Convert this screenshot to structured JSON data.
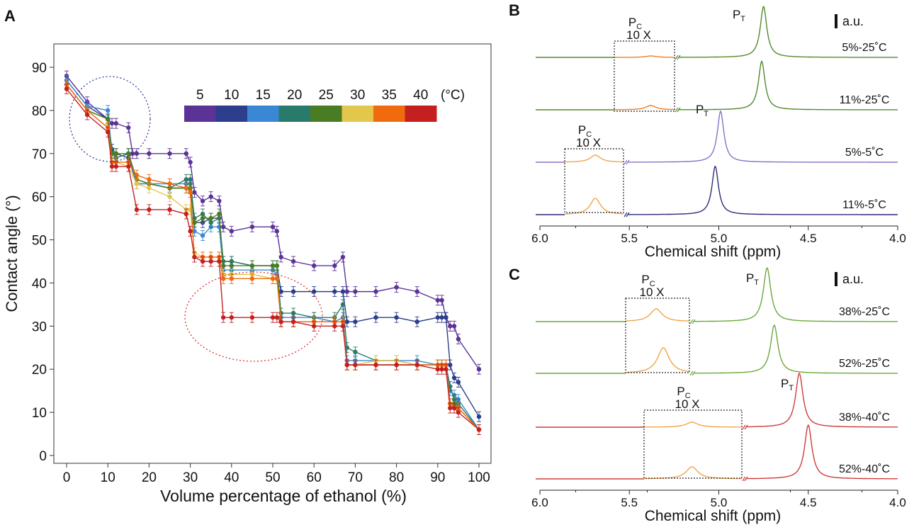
{
  "chart_data": [
    {
      "panel": "A",
      "type": "line",
      "xlabel": "Volume percentage of ethanol (%)",
      "ylabel": "Contact angle (°)",
      "xlim": [
        0,
        100
      ],
      "ylim": [
        0,
        90
      ],
      "xticks": [
        0,
        10,
        20,
        30,
        40,
        50,
        60,
        70,
        80,
        90,
        100
      ],
      "yticks": [
        0,
        10,
        20,
        30,
        40,
        50,
        60,
        70,
        80,
        90
      ],
      "legend_unit": "(°C)",
      "series": [
        {
          "name": "5",
          "color": "#5b3397",
          "x": [
            0,
            5,
            10,
            11,
            12,
            15,
            16,
            17,
            20,
            25,
            29,
            30,
            31,
            33,
            35,
            37,
            38,
            40,
            45,
            50,
            51,
            52,
            55,
            60,
            65,
            67,
            68,
            70,
            75,
            80,
            85,
            90,
            91,
            92,
            93,
            94,
            95,
            100
          ],
          "y": [
            88,
            82,
            78,
            77,
            77,
            76,
            70,
            70,
            70,
            70,
            70,
            68,
            61,
            59,
            60,
            59,
            53,
            52,
            53,
            53,
            52,
            46,
            45,
            44,
            44,
            46,
            38,
            38,
            38,
            39,
            38,
            36,
            36,
            32,
            30,
            30,
            27,
            20
          ]
        },
        {
          "name": "10",
          "color": "#2c3e8c",
          "x": [
            0,
            5,
            10,
            11,
            12,
            15,
            17,
            20,
            25,
            29,
            30,
            31,
            33,
            35,
            37,
            38,
            40,
            45,
            50,
            51,
            52,
            55,
            60,
            65,
            67,
            68,
            70,
            75,
            80,
            85,
            90,
            91,
            92,
            93,
            94,
            95,
            100
          ],
          "y": [
            87,
            81,
            78,
            71,
            70,
            69,
            63,
            63,
            62,
            62,
            62,
            54,
            54,
            55,
            55,
            45,
            45,
            44,
            44,
            44,
            38,
            38,
            38,
            38,
            38,
            31,
            31,
            32,
            32,
            31,
            32,
            32,
            32,
            21,
            18,
            17,
            9
          ]
        },
        {
          "name": "15",
          "color": "#3a87d6",
          "x": [
            0,
            5,
            10,
            11,
            12,
            15,
            17,
            20,
            25,
            29,
            30,
            31,
            33,
            35,
            37,
            38,
            40,
            45,
            50,
            51,
            52,
            55,
            60,
            65,
            67,
            68,
            70,
            75,
            80,
            85,
            90,
            91,
            92,
            93,
            94,
            95,
            100
          ],
          "y": [
            87,
            81,
            80,
            70,
            69,
            70,
            63,
            63,
            63,
            63,
            63,
            52,
            51,
            53,
            53,
            43,
            43,
            43,
            43,
            42,
            32,
            32,
            32,
            31,
            32,
            22,
            22,
            22,
            22,
            22,
            21,
            21,
            21,
            15,
            14,
            13,
            6
          ]
        },
        {
          "name": "20",
          "color": "#2a7a6c",
          "x": [
            0,
            5,
            10,
            11,
            12,
            15,
            17,
            20,
            25,
            29,
            30,
            31,
            33,
            35,
            37,
            38,
            40,
            45,
            50,
            51,
            52,
            55,
            60,
            65,
            67,
            68,
            70,
            75,
            80,
            85,
            90,
            91,
            92,
            93,
            94,
            95,
            100
          ],
          "y": [
            86,
            80,
            78,
            70,
            69,
            70,
            64,
            63,
            62,
            64,
            64,
            55,
            56,
            54,
            55,
            45,
            45,
            44,
            44,
            44,
            33,
            33,
            32,
            32,
            35,
            25,
            24,
            22,
            22,
            21,
            21,
            21,
            21,
            16,
            13,
            12,
            6
          ]
        },
        {
          "name": "25",
          "color": "#4a7d23",
          "x": [
            0,
            5,
            10,
            11,
            12,
            15,
            17,
            20,
            25,
            29,
            30,
            31,
            33,
            35,
            37,
            38,
            40,
            45,
            50,
            51,
            52,
            55,
            60,
            65,
            67,
            68,
            70,
            75,
            80,
            85,
            90,
            91,
            92,
            93,
            94,
            95,
            100
          ],
          "y": [
            86,
            80,
            78,
            70,
            70,
            70,
            64,
            63,
            62,
            62,
            62,
            54,
            55,
            55,
            56,
            44,
            44,
            44,
            44,
            44,
            31,
            31,
            31,
            31,
            31,
            21,
            21,
            21,
            21,
            21,
            21,
            21,
            21,
            12,
            12,
            11,
            6
          ]
        },
        {
          "name": "30",
          "color": "#e3c64c",
          "x": [
            0,
            5,
            10,
            11,
            12,
            15,
            17,
            20,
            25,
            29,
            30,
            31,
            33,
            35,
            37,
            38,
            40,
            45,
            50,
            51,
            52,
            55,
            60,
            65,
            67,
            68,
            70,
            75,
            80,
            85,
            90,
            91,
            92,
            93,
            94,
            95,
            100
          ],
          "y": [
            86,
            80,
            76,
            68,
            68,
            67,
            63,
            62,
            60,
            57,
            57,
            47,
            46,
            46,
            46,
            42,
            42,
            42,
            41,
            41,
            31,
            31,
            31,
            31,
            31,
            21,
            21,
            22,
            22,
            21,
            21,
            21,
            21,
            12,
            11,
            11,
            6
          ]
        },
        {
          "name": "35",
          "color": "#f06a0e",
          "x": [
            0,
            5,
            10,
            11,
            12,
            15,
            17,
            20,
            25,
            29,
            30,
            31,
            33,
            35,
            37,
            38,
            40,
            45,
            50,
            51,
            52,
            55,
            60,
            65,
            67,
            68,
            70,
            75,
            80,
            85,
            90,
            91,
            92,
            93,
            94,
            95,
            100
          ],
          "y": [
            86,
            80,
            76,
            68,
            68,
            68,
            65,
            64,
            63,
            62,
            61,
            46,
            46,
            46,
            46,
            41,
            41,
            41,
            41,
            41,
            31,
            31,
            31,
            31,
            31,
            21,
            21,
            21,
            21,
            21,
            21,
            21,
            21,
            12,
            11,
            11,
            6
          ]
        },
        {
          "name": "40",
          "color": "#c42020",
          "x": [
            0,
            5,
            10,
            11,
            12,
            15,
            17,
            20,
            25,
            29,
            30,
            31,
            33,
            35,
            37,
            38,
            40,
            45,
            50,
            51,
            52,
            55,
            60,
            65,
            67,
            68,
            70,
            75,
            80,
            85,
            90,
            91,
            92,
            93,
            94,
            95,
            100
          ],
          "y": [
            85,
            79,
            75,
            67,
            67,
            67,
            57,
            57,
            57,
            56,
            52,
            46,
            45,
            45,
            45,
            32,
            32,
            32,
            32,
            32,
            31,
            31,
            30,
            30,
            30,
            21,
            21,
            21,
            21,
            21,
            20,
            20,
            20,
            11,
            11,
            10,
            6
          ]
        }
      ]
    },
    {
      "panel": "B",
      "type": "line",
      "xlabel": "Chemical shift (ppm)",
      "xlim": [
        6.0,
        4.0
      ],
      "xticks": [
        "6.0",
        "5.5",
        "5.0",
        "4.5",
        "4.0"
      ],
      "scale_label": "a.u.",
      "peak_labels": {
        "pc_main": "P",
        "pc_sub": "C",
        "pt_main": "P",
        "pt_sub": "T",
        "magnification": "10 X"
      },
      "series": [
        {
          "name": "5%-25˚C",
          "color": "#4f8a2b",
          "inset_color": "#f07d1c",
          "pt_ppm": 4.75,
          "pt_height": 1.0,
          "pc_ppm": 5.38,
          "pc_height": 0.1
        },
        {
          "name": "11%-25˚C",
          "color": "#4f8a2b",
          "inset_color": "#f07d1c",
          "pt_ppm": 4.76,
          "pt_height": 0.95,
          "pc_ppm": 5.38,
          "pc_height": 0.3
        },
        {
          "name": "5%-5˚C",
          "color": "#8a6fc7",
          "inset_color": "#f2a44a",
          "pt_ppm": 4.99,
          "pt_height": 1.0,
          "pc_ppm": 5.69,
          "pc_height": 0.5
        },
        {
          "name": "11%-5˚C",
          "color": "#2b2a7a",
          "inset_color": "#f2a44a",
          "pt_ppm": 5.02,
          "pt_height": 0.95,
          "pc_ppm": 5.69,
          "pc_height": 1.15
        }
      ]
    },
    {
      "panel": "C",
      "type": "line",
      "xlabel": "Chemical shift (ppm)",
      "xlim": [
        6.0,
        4.0
      ],
      "xticks": [
        "6.0",
        "5.5",
        "5.0",
        "4.5",
        "4.0"
      ],
      "scale_label": "a.u.",
      "peak_labels": {
        "pc_main": "P",
        "pc_sub": "C",
        "pt_main": "P",
        "pt_sub": "T",
        "magnification": "10 X"
      },
      "series": [
        {
          "name": "38%-25˚C",
          "color": "#6aa83a",
          "inset_color": "#f2a44a",
          "pt_ppm": 4.73,
          "pt_height": 0.95,
          "pc_ppm": 5.35,
          "pc_height": 0.9
        },
        {
          "name": "52%-25˚C",
          "color": "#6aa83a",
          "inset_color": "#f2a44a",
          "pt_ppm": 4.69,
          "pt_height": 0.85,
          "pc_ppm": 5.31,
          "pc_height": 1.8
        },
        {
          "name": "38%-40˚C",
          "color": "#cf3b3b",
          "inset_color": "#f2a44a",
          "pt_ppm": 4.55,
          "pt_height": 0.95,
          "pc_ppm": 5.15,
          "pc_height": 0.35
        },
        {
          "name": "52%-40˚C",
          "color": "#cf3b3b",
          "inset_color": "#f2a44a",
          "pt_ppm": 4.5,
          "pt_height": 0.95,
          "pc_ppm": 5.15,
          "pc_height": 0.85
        }
      ]
    }
  ],
  "panels": {
    "a": "A",
    "b": "B",
    "c": "C"
  }
}
